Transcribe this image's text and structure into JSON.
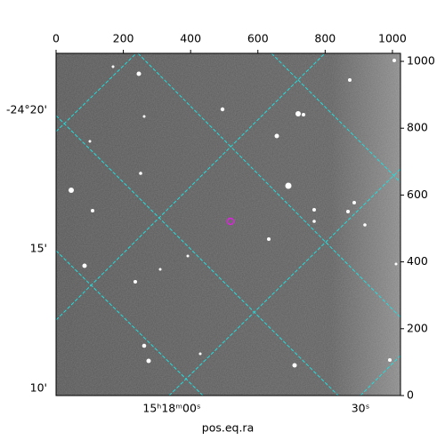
{
  "chart_data": {
    "type": "image",
    "xlabel": "pos.eq.ra",
    "xlim": [
      0,
      1024
    ],
    "ylim": [
      0,
      1024
    ],
    "xticks": [
      0,
      200,
      400,
      600,
      800,
      1000
    ],
    "yticks": [
      0,
      200,
      400,
      600,
      800,
      1000
    ],
    "ra_tick_labels": [
      "15ʰ18ᵐ00ˢ",
      "30ˢ"
    ],
    "dec_tick_labels": [
      "-24°20'",
      "15'",
      "10'"
    ],
    "grid_color": "#22dddd"
  }
}
